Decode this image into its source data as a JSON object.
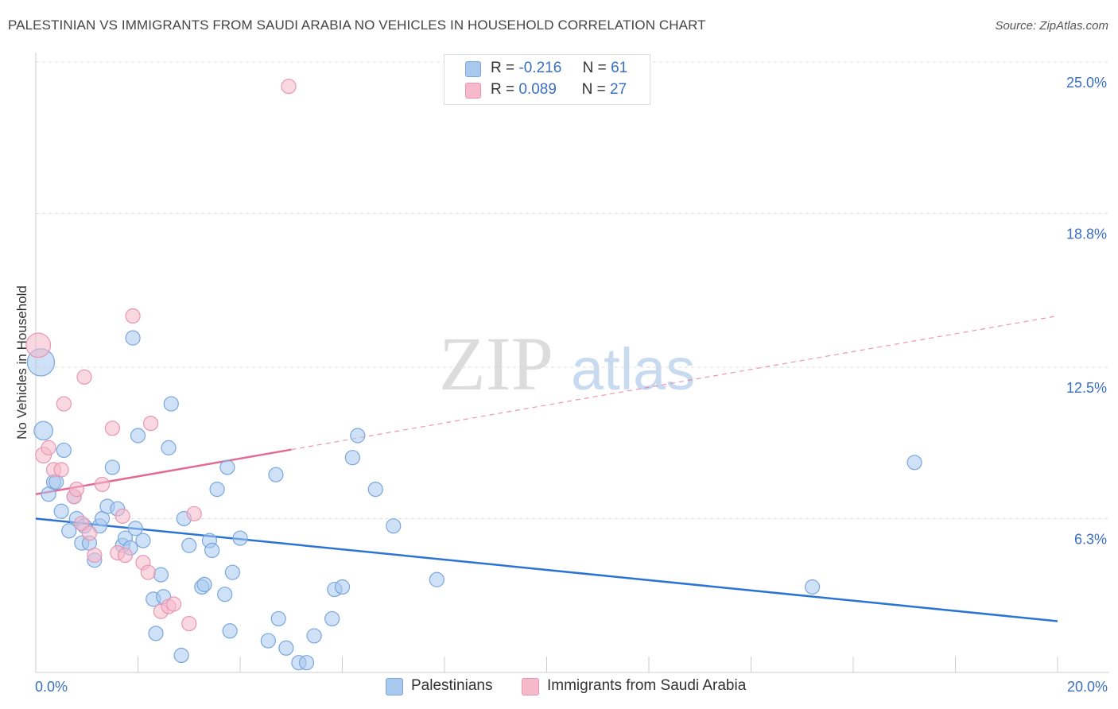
{
  "title": "PALESTINIAN VS IMMIGRANTS FROM SAUDI ARABIA NO VEHICLES IN HOUSEHOLD CORRELATION CHART",
  "source": "Source: ZipAtlas.com",
  "watermark": {
    "zip": "ZIP",
    "atlas": "atlas"
  },
  "colors": {
    "blue_fill": "#a8c8f0",
    "blue_stroke": "#7aa6dc",
    "blue_line": "#2b74d4",
    "pink_fill": "#f6b8cb",
    "pink_stroke": "#e995b0",
    "pink_line": "#e36a93",
    "axis_label": "#3a6fc4",
    "grid": "#dddddd"
  },
  "stats": [
    {
      "r_label": "R =",
      "r_value": "-0.216",
      "n_label": "N =",
      "n_value": "61",
      "color": "#a8c8f0"
    },
    {
      "r_label": "R =",
      "r_value": "0.089",
      "n_label": "N =",
      "n_value": "27",
      "color": "#f6b8cb"
    }
  ],
  "legend": [
    {
      "label": "Palestinians",
      "color": "#a8c8f0"
    },
    {
      "label": "Immigrants from Saudi Arabia",
      "color": "#f6b8cb"
    }
  ],
  "chart_data": {
    "type": "scatter",
    "title": "PALESTINIAN VS IMMIGRANTS FROM SAUDI ARABIA NO VEHICLES IN HOUSEHOLD CORRELATION CHART",
    "xlabel": "",
    "ylabel": "No Vehicles in Household",
    "xlim": [
      0,
      20
    ],
    "ylim": [
      0,
      25
    ],
    "x_tick_labels": [
      "0.0%",
      "20.0%"
    ],
    "y_ticks": [
      6.3,
      12.5,
      18.8,
      25.0
    ],
    "y_tick_labels": [
      "6.3%",
      "12.5%",
      "18.8%",
      "25.0%"
    ],
    "grid": true,
    "legend_position": "bottom",
    "series": [
      {
        "name": "Palestinians",
        "color": "#a8c8f0",
        "trend": {
          "x0": 0,
          "y0": 6.3,
          "x1": 20,
          "y1": 2.1,
          "solid_until": 20
        },
        "points": [
          {
            "x": 0.1,
            "y": 12.7,
            "s": 1.9
          },
          {
            "x": 0.15,
            "y": 9.9,
            "s": 1.3
          },
          {
            "x": 0.25,
            "y": 7.3,
            "s": 1
          },
          {
            "x": 0.35,
            "y": 7.8,
            "s": 1
          },
          {
            "x": 0.4,
            "y": 7.8,
            "s": 1
          },
          {
            "x": 0.5,
            "y": 6.6,
            "s": 1
          },
          {
            "x": 0.55,
            "y": 9.1,
            "s": 1
          },
          {
            "x": 0.65,
            "y": 5.8,
            "s": 1
          },
          {
            "x": 0.75,
            "y": 7.2,
            "s": 1
          },
          {
            "x": 0.8,
            "y": 6.3,
            "s": 1
          },
          {
            "x": 0.9,
            "y": 5.3,
            "s": 1
          },
          {
            "x": 0.95,
            "y": 6.0,
            "s": 1
          },
          {
            "x": 1.05,
            "y": 5.3,
            "s": 1
          },
          {
            "x": 1.15,
            "y": 4.6,
            "s": 1
          },
          {
            "x": 1.25,
            "y": 6.0,
            "s": 1
          },
          {
            "x": 1.3,
            "y": 6.3,
            "s": 1
          },
          {
            "x": 1.4,
            "y": 6.8,
            "s": 1
          },
          {
            "x": 1.5,
            "y": 8.4,
            "s": 1
          },
          {
            "x": 1.6,
            "y": 6.7,
            "s": 1
          },
          {
            "x": 1.7,
            "y": 5.2,
            "s": 1
          },
          {
            "x": 1.75,
            "y": 5.5,
            "s": 1
          },
          {
            "x": 1.85,
            "y": 5.1,
            "s": 1
          },
          {
            "x": 1.9,
            "y": 13.7,
            "s": 1
          },
          {
            "x": 1.95,
            "y": 5.9,
            "s": 1
          },
          {
            "x": 2.0,
            "y": 9.7,
            "s": 1
          },
          {
            "x": 2.1,
            "y": 5.4,
            "s": 1
          },
          {
            "x": 2.3,
            "y": 3.0,
            "s": 1
          },
          {
            "x": 2.35,
            "y": 1.6,
            "s": 1
          },
          {
            "x": 2.45,
            "y": 4.0,
            "s": 1
          },
          {
            "x": 2.5,
            "y": 3.1,
            "s": 1
          },
          {
            "x": 2.6,
            "y": 9.2,
            "s": 1
          },
          {
            "x": 2.65,
            "y": 11.0,
            "s": 1
          },
          {
            "x": 2.85,
            "y": 0.7,
            "s": 1
          },
          {
            "x": 2.9,
            "y": 6.3,
            "s": 1
          },
          {
            "x": 3.0,
            "y": 5.2,
            "s": 1
          },
          {
            "x": 3.25,
            "y": 3.5,
            "s": 1
          },
          {
            "x": 3.3,
            "y": 3.6,
            "s": 1
          },
          {
            "x": 3.4,
            "y": 5.4,
            "s": 1
          },
          {
            "x": 3.45,
            "y": 5.0,
            "s": 1
          },
          {
            "x": 3.55,
            "y": 7.5,
            "s": 1
          },
          {
            "x": 3.7,
            "y": 3.2,
            "s": 1
          },
          {
            "x": 3.75,
            "y": 8.4,
            "s": 1
          },
          {
            "x": 3.8,
            "y": 1.7,
            "s": 1
          },
          {
            "x": 3.85,
            "y": 4.1,
            "s": 1
          },
          {
            "x": 4.0,
            "y": 5.5,
            "s": 1
          },
          {
            "x": 4.55,
            "y": 1.3,
            "s": 1
          },
          {
            "x": 4.7,
            "y": 8.1,
            "s": 1
          },
          {
            "x": 4.75,
            "y": 2.2,
            "s": 1
          },
          {
            "x": 4.9,
            "y": 1.0,
            "s": 1
          },
          {
            "x": 5.15,
            "y": 0.4,
            "s": 1
          },
          {
            "x": 5.3,
            "y": 0.4,
            "s": 1
          },
          {
            "x": 5.45,
            "y": 1.5,
            "s": 1
          },
          {
            "x": 5.8,
            "y": 2.2,
            "s": 1
          },
          {
            "x": 5.85,
            "y": 3.4,
            "s": 1
          },
          {
            "x": 6.0,
            "y": 3.5,
            "s": 1
          },
          {
            "x": 6.2,
            "y": 8.8,
            "s": 1
          },
          {
            "x": 6.3,
            "y": 9.7,
            "s": 1
          },
          {
            "x": 6.65,
            "y": 7.5,
            "s": 1
          },
          {
            "x": 7.0,
            "y": 6.0,
            "s": 1
          },
          {
            "x": 7.85,
            "y": 3.8,
            "s": 1
          },
          {
            "x": 15.2,
            "y": 3.5,
            "s": 1
          },
          {
            "x": 17.2,
            "y": 8.6,
            "s": 1
          }
        ]
      },
      {
        "name": "Immigrants from Saudi Arabia",
        "color": "#f6b8cb",
        "trend": {
          "x0": 0,
          "y0": 7.3,
          "x1": 20,
          "y1": 14.6,
          "solid_until": 5.0
        },
        "points": [
          {
            "x": 0.05,
            "y": 13.4,
            "s": 1.7
          },
          {
            "x": 0.15,
            "y": 8.9,
            "s": 1.1
          },
          {
            "x": 0.25,
            "y": 9.2,
            "s": 1
          },
          {
            "x": 0.35,
            "y": 8.3,
            "s": 1
          },
          {
            "x": 0.5,
            "y": 8.3,
            "s": 1
          },
          {
            "x": 0.55,
            "y": 11.0,
            "s": 1
          },
          {
            "x": 0.75,
            "y": 7.2,
            "s": 1
          },
          {
            "x": 0.8,
            "y": 7.5,
            "s": 1
          },
          {
            "x": 0.9,
            "y": 6.1,
            "s": 1
          },
          {
            "x": 0.95,
            "y": 12.1,
            "s": 1
          },
          {
            "x": 1.05,
            "y": 5.7,
            "s": 1
          },
          {
            "x": 1.15,
            "y": 4.8,
            "s": 1
          },
          {
            "x": 1.3,
            "y": 7.7,
            "s": 1
          },
          {
            "x": 1.5,
            "y": 10.0,
            "s": 1
          },
          {
            "x": 1.6,
            "y": 4.9,
            "s": 1
          },
          {
            "x": 1.7,
            "y": 6.4,
            "s": 1
          },
          {
            "x": 1.75,
            "y": 4.8,
            "s": 1
          },
          {
            "x": 1.9,
            "y": 14.6,
            "s": 1
          },
          {
            "x": 2.1,
            "y": 4.5,
            "s": 1
          },
          {
            "x": 2.2,
            "y": 4.1,
            "s": 1
          },
          {
            "x": 2.25,
            "y": 10.2,
            "s": 1
          },
          {
            "x": 2.45,
            "y": 2.5,
            "s": 1
          },
          {
            "x": 2.6,
            "y": 2.7,
            "s": 1
          },
          {
            "x": 2.7,
            "y": 2.8,
            "s": 1
          },
          {
            "x": 3.0,
            "y": 2.0,
            "s": 1
          },
          {
            "x": 3.1,
            "y": 6.5,
            "s": 1
          },
          {
            "x": 4.95,
            "y": 24.0,
            "s": 1
          }
        ]
      }
    ]
  }
}
